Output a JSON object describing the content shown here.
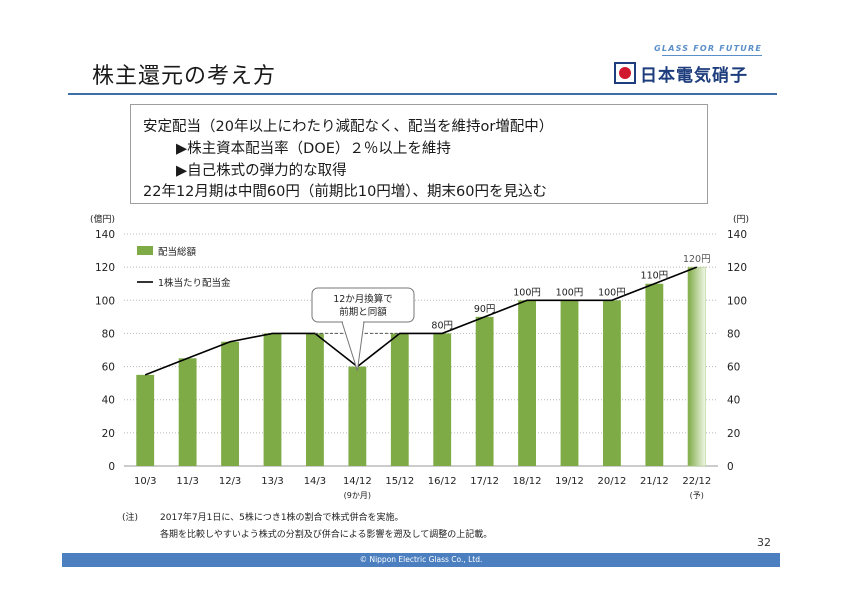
{
  "header": {
    "title": "株主還元の考え方",
    "logo_tagline": "GLASS FOR FUTURE",
    "logo_name": "日本電気硝子"
  },
  "policy": {
    "lines": [
      "安定配当（20年以上にわたり減配なく、配当を維持or増配中）",
      "▶株主資本配当率（DOE）２％以上を維持",
      "▶自己株式の弾力的な取得",
      "22年12月期は中間60円（前期比10円増）、期末60円を見込む"
    ]
  },
  "chart_data": {
    "type": "bar",
    "categories": [
      "10/3",
      "11/3",
      "12/3",
      "13/3",
      "14/3",
      "14/12",
      "15/12",
      "16/12",
      "17/12",
      "18/12",
      "19/12",
      "20/12",
      "21/12",
      "22/12"
    ],
    "category_sublabels": [
      "",
      "",
      "",
      "",
      "",
      "(9か月)",
      "",
      "",
      "",
      "",
      "",
      "",
      "",
      "(予)"
    ],
    "series": [
      {
        "name": "配当総額",
        "kind": "bar",
        "axis": "left",
        "values": [
          55,
          65,
          75,
          80,
          80,
          60,
          80,
          80,
          90,
          100,
          100,
          100,
          110,
          120
        ],
        "color": "#7eab45",
        "forecast_index": 13
      },
      {
        "name": "1株当たり配当金",
        "kind": "line",
        "axis": "right",
        "values": [
          55,
          65,
          75,
          80,
          80,
          60,
          80,
          80,
          90,
          100,
          100,
          100,
          110,
          120
        ],
        "color": "#000000"
      }
    ],
    "dashed_segment": {
      "from": "14/3",
      "to": "15/12",
      "value": 80
    },
    "data_labels": [
      {
        "category": "16/12",
        "text": "80円"
      },
      {
        "category": "17/12",
        "text": "90円"
      },
      {
        "category": "18/12",
        "text": "100円"
      },
      {
        "category": "19/12",
        "text": "100円"
      },
      {
        "category": "20/12",
        "text": "100円"
      },
      {
        "category": "21/12",
        "text": "110円"
      },
      {
        "category": "22/12",
        "text": "120円",
        "forecast": true
      }
    ],
    "left_axis_label": "(億円)",
    "right_axis_label": "(円)",
    "y_ticks": [
      0,
      20,
      40,
      60,
      80,
      100,
      120,
      140
    ],
    "ylim": [
      0,
      140
    ],
    "grid": true,
    "legend": "top-left",
    "callout": {
      "lines": [
        "12か月換算で",
        "前期と同額"
      ],
      "target": "14/12"
    }
  },
  "notes": {
    "prefix": "(注)",
    "line1": "2017年7月1日に、5株につき1株の割合で株式併合を実施。",
    "line2": "各期を比較しやすいよう株式の分割及び併合による影響を遡及して調整の上記載。"
  },
  "page_number": "32",
  "footer": {
    "copyright": "© Nippon Electric Glass Co., Ltd."
  }
}
